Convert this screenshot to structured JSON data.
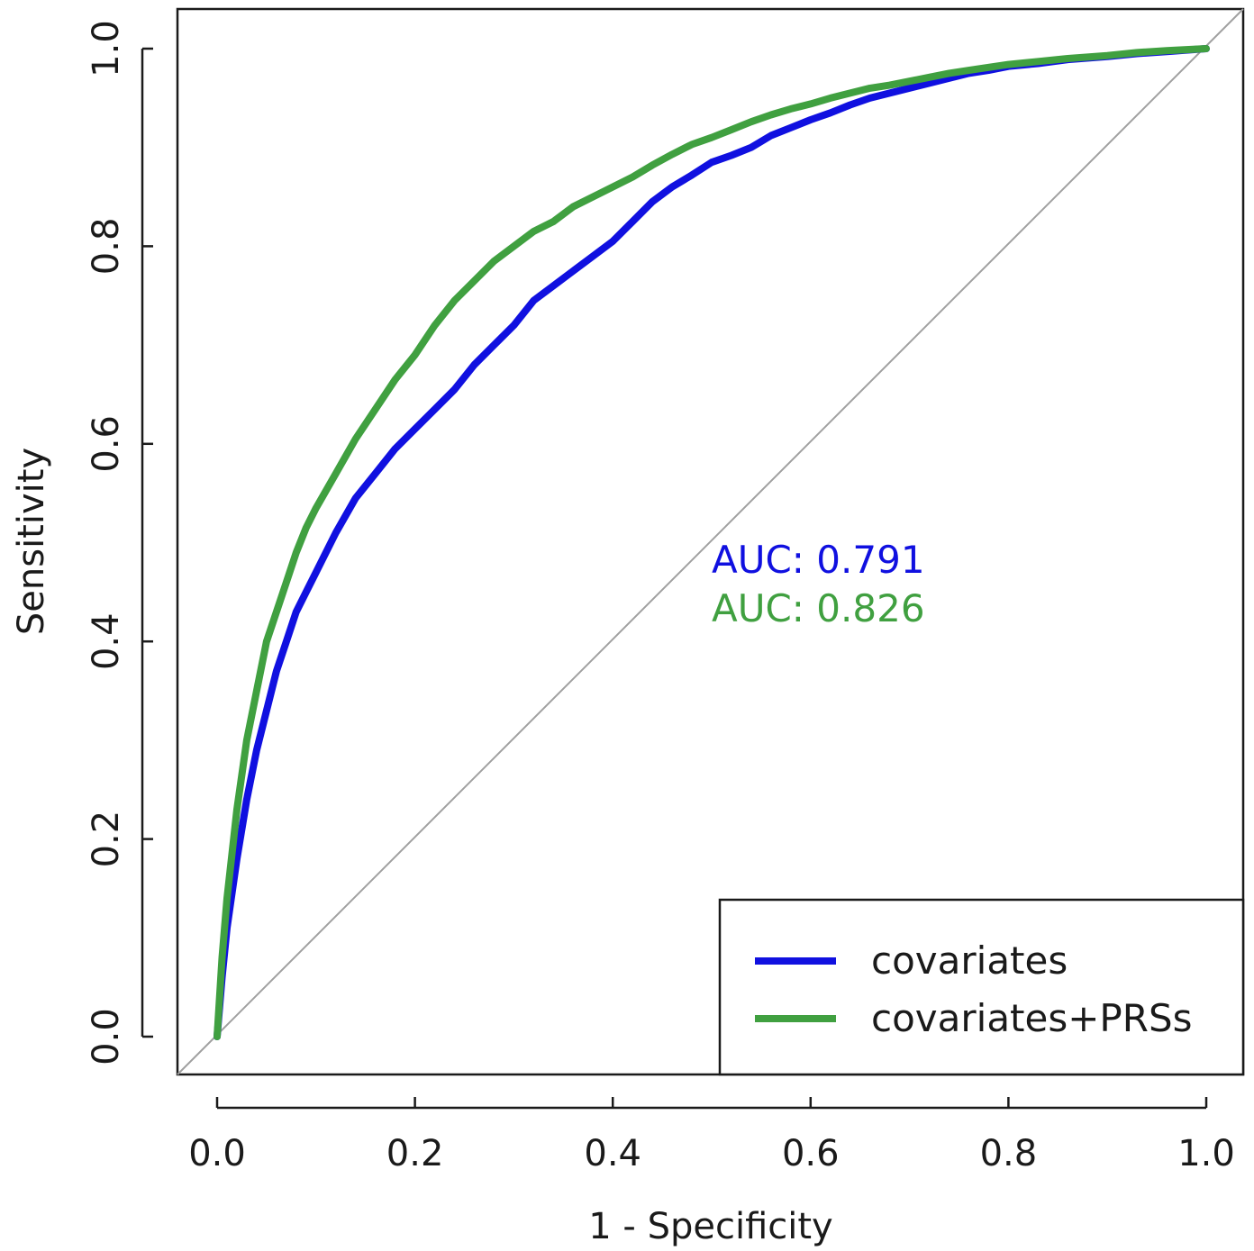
{
  "chart_data": {
    "type": "line",
    "title": "",
    "xlabel": "1 - Specificity",
    "ylabel": "Sensitivity",
    "xlim": [
      0,
      1
    ],
    "ylim": [
      0,
      1
    ],
    "x_ticks": [
      "0.0",
      "0.2",
      "0.4",
      "0.6",
      "0.8",
      "1.0"
    ],
    "y_ticks": [
      "0.0",
      "0.2",
      "0.4",
      "0.6",
      "0.8",
      "1.0"
    ],
    "grid": false,
    "reference_line": {
      "from": [
        0,
        0
      ],
      "to": [
        1,
        1
      ],
      "color": "#a0a0a0"
    },
    "legend_position": "bottom-right",
    "series": [
      {
        "name": "covariates",
        "color": "#1010e0",
        "auc_label": "AUC: 0.791",
        "x": [
          0,
          0.005,
          0.01,
          0.02,
          0.03,
          0.04,
          0.05,
          0.06,
          0.07,
          0.08,
          0.09,
          0.1,
          0.12,
          0.14,
          0.16,
          0.18,
          0.2,
          0.22,
          0.24,
          0.26,
          0.28,
          0.3,
          0.32,
          0.34,
          0.36,
          0.38,
          0.4,
          0.42,
          0.44,
          0.46,
          0.48,
          0.5,
          0.52,
          0.54,
          0.56,
          0.58,
          0.6,
          0.62,
          0.64,
          0.66,
          0.68,
          0.7,
          0.72,
          0.74,
          0.76,
          0.78,
          0.8,
          0.83,
          0.86,
          0.9,
          0.93,
          0.96,
          1.0
        ],
        "y": [
          0,
          0.06,
          0.11,
          0.18,
          0.24,
          0.29,
          0.33,
          0.37,
          0.4,
          0.43,
          0.45,
          0.47,
          0.51,
          0.545,
          0.57,
          0.595,
          0.615,
          0.635,
          0.655,
          0.68,
          0.7,
          0.72,
          0.745,
          0.76,
          0.775,
          0.79,
          0.805,
          0.825,
          0.845,
          0.86,
          0.872,
          0.885,
          0.892,
          0.9,
          0.912,
          0.92,
          0.928,
          0.935,
          0.943,
          0.95,
          0.955,
          0.96,
          0.965,
          0.97,
          0.975,
          0.978,
          0.982,
          0.985,
          0.989,
          0.992,
          0.995,
          0.997,
          1.0
        ]
      },
      {
        "name": "covariates+PRSs",
        "color": "#40a040",
        "auc_label": "AUC: 0.826",
        "x": [
          0,
          0.005,
          0.01,
          0.02,
          0.03,
          0.04,
          0.05,
          0.06,
          0.07,
          0.08,
          0.09,
          0.1,
          0.12,
          0.14,
          0.16,
          0.18,
          0.2,
          0.22,
          0.24,
          0.26,
          0.28,
          0.3,
          0.32,
          0.34,
          0.36,
          0.38,
          0.4,
          0.42,
          0.44,
          0.46,
          0.48,
          0.5,
          0.52,
          0.54,
          0.56,
          0.58,
          0.6,
          0.62,
          0.64,
          0.66,
          0.68,
          0.7,
          0.72,
          0.74,
          0.76,
          0.78,
          0.8,
          0.83,
          0.86,
          0.9,
          0.93,
          0.96,
          1.0
        ],
        "y": [
          0,
          0.08,
          0.14,
          0.23,
          0.3,
          0.35,
          0.4,
          0.43,
          0.46,
          0.49,
          0.515,
          0.535,
          0.57,
          0.605,
          0.635,
          0.665,
          0.69,
          0.72,
          0.745,
          0.765,
          0.785,
          0.8,
          0.815,
          0.825,
          0.84,
          0.85,
          0.86,
          0.87,
          0.882,
          0.893,
          0.903,
          0.91,
          0.918,
          0.926,
          0.933,
          0.939,
          0.944,
          0.95,
          0.955,
          0.96,
          0.963,
          0.967,
          0.971,
          0.975,
          0.978,
          0.981,
          0.984,
          0.987,
          0.99,
          0.993,
          0.996,
          0.998,
          1.0
        ]
      }
    ]
  }
}
